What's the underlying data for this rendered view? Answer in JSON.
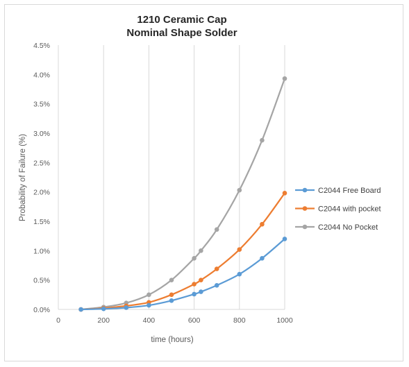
{
  "chart_data": {
    "type": "line",
    "title": [
      "1210 Ceramic Cap",
      "Nominal Shape Solder"
    ],
    "xlabel": "time (hours)",
    "ylabel": "Probability of Failure (%)",
    "xlim": [
      0,
      1000
    ],
    "ylim": [
      0,
      4.5
    ],
    "x_ticks": [
      "0",
      "200",
      "400",
      "600",
      "800",
      "1000"
    ],
    "y_ticks": [
      "0.0%",
      "0.5%",
      "1.0%",
      "1.5%",
      "2.0%",
      "2.5%",
      "3.0%",
      "3.5%",
      "4.0%",
      "4.5%"
    ],
    "grid": "vertical",
    "legend_position": "right",
    "series": [
      {
        "name": "C2044 Free Board",
        "color": "#5b9bd5",
        "points": [
          [
            100,
            0.0
          ],
          [
            200,
            0.01
          ],
          [
            300,
            0.03
          ],
          [
            400,
            0.07
          ],
          [
            500,
            0.15
          ],
          [
            600,
            0.26
          ],
          [
            630,
            0.3
          ],
          [
            700,
            0.41
          ],
          [
            800,
            0.6
          ],
          [
            900,
            0.87
          ],
          [
            1000,
            1.2
          ]
        ]
      },
      {
        "name": "C2044 with pocket",
        "color": "#ed7d31",
        "points": [
          [
            100,
            0.0
          ],
          [
            200,
            0.02
          ],
          [
            300,
            0.06
          ],
          [
            400,
            0.12
          ],
          [
            500,
            0.25
          ],
          [
            600,
            0.43
          ],
          [
            630,
            0.5
          ],
          [
            700,
            0.69
          ],
          [
            800,
            1.02
          ],
          [
            900,
            1.45
          ],
          [
            1000,
            1.98
          ]
        ]
      },
      {
        "name": "C2044 No Pocket",
        "color": "#a5a5a5",
        "points": [
          [
            100,
            0.0
          ],
          [
            200,
            0.04
          ],
          [
            300,
            0.11
          ],
          [
            400,
            0.25
          ],
          [
            500,
            0.5
          ],
          [
            600,
            0.87
          ],
          [
            630,
            1.0
          ],
          [
            700,
            1.36
          ],
          [
            800,
            2.03
          ],
          [
            900,
            2.88
          ],
          [
            1000,
            3.93
          ]
        ]
      }
    ]
  }
}
